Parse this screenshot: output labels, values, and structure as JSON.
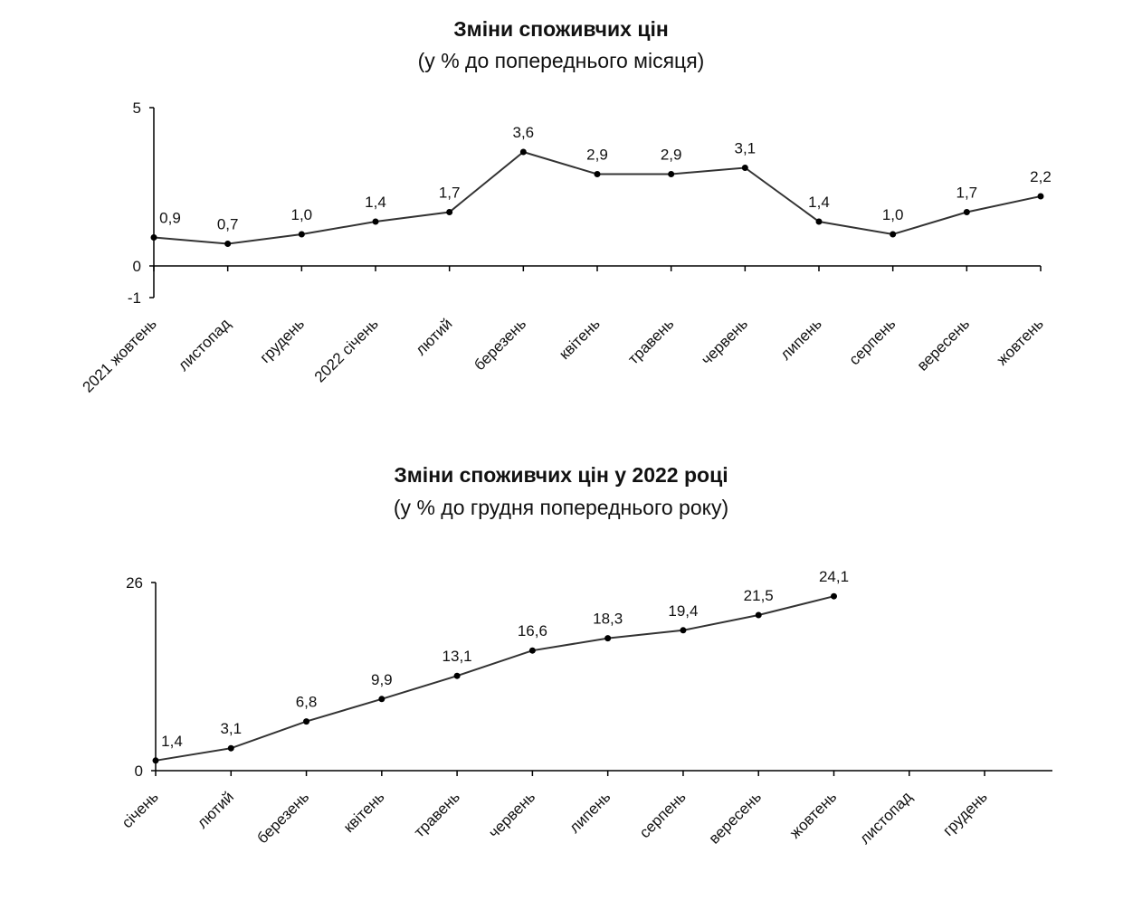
{
  "chart_data": [
    {
      "type": "line",
      "title": "Зміни споживчих цін",
      "subtitle": "(у % до попереднього місяця)",
      "categories": [
        "2021 жовтень",
        "листопад",
        "грудень",
        "2022 січень",
        "лютий",
        "березень",
        "квітень",
        "травень",
        "червень",
        "липень",
        "серпень",
        "вересень",
        "жовтень"
      ],
      "values": [
        0.9,
        0.7,
        1.0,
        1.4,
        1.7,
        3.6,
        2.9,
        2.9,
        3.1,
        1.4,
        1.0,
        1.7,
        2.2
      ],
      "value_labels": [
        "0,9",
        "0,7",
        "1,0",
        "1,4",
        "1,7",
        "3,6",
        "2,9",
        "2,9",
        "3,1",
        "1,4",
        "1,0",
        "1,7",
        "2,2"
      ],
      "color": "#333333",
      "ylim": [
        -1,
        5
      ],
      "yticks": [
        -1,
        0,
        5
      ]
    },
    {
      "type": "line",
      "title": "Зміни споживчих цін у 2022 році",
      "subtitle": "(у % до грудня попереднього року)",
      "categories": [
        "січень",
        "лютий",
        "березень",
        "квітень",
        "травень",
        "червень",
        "липень",
        "серпень",
        "вересень",
        "жовтень",
        "листопад",
        "грудень"
      ],
      "values": [
        1.4,
        3.1,
        6.8,
        9.9,
        13.1,
        16.6,
        18.3,
        19.4,
        21.5,
        24.1,
        null,
        null
      ],
      "value_labels": [
        "1,4",
        "3,1",
        "6,8",
        "9,9",
        "13,1",
        "16,6",
        "18,3",
        "19,4",
        "21,5",
        "24,1",
        null,
        null
      ],
      "color": "#333333",
      "ylim": [
        0,
        26
      ],
      "yticks": [
        0,
        26
      ]
    }
  ]
}
